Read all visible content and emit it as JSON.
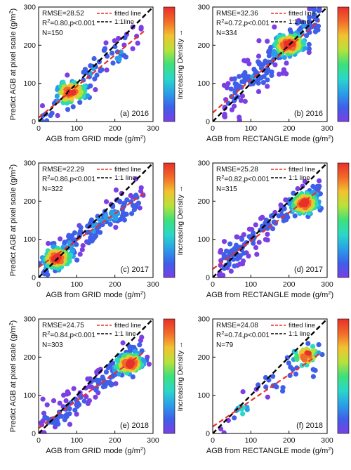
{
  "colors": {
    "fitted_line": "#e8302a",
    "one_to_one_line": "#000000",
    "density_scale": [
      "#7b3fe4",
      "#3f5fe8",
      "#2a9fe8",
      "#2ad8c8",
      "#3ee07a",
      "#b8e23a",
      "#f2c230",
      "#f26a2a",
      "#e8302a"
    ]
  },
  "colorbar": {
    "label": "Increasing Density →"
  },
  "chart_data": [
    {
      "type": "scatter",
      "panel_label": "(a) 2016",
      "xlabel": "AGB  from GRID mode (g/m²)",
      "ylabel": "Predict AGB at pixel scale (g/m²)",
      "xlim": [
        0,
        300
      ],
      "ylim": [
        0,
        300
      ],
      "x_ticks": [
        "0",
        "100",
        "200",
        "300"
      ],
      "y_ticks": [
        "0",
        "100",
        "200",
        "300"
      ],
      "stats": {
        "rmse": "RMSE=28.52",
        "r2": "R²=0.80,p<0.001",
        "n": "N=150"
      },
      "legend": {
        "fitted": "fitted line",
        "one_to_one": "1:1line"
      },
      "fitted_line": {
        "slope": 0.82,
        "intercept": 10
      },
      "scatter_sample": {
        "n": 150,
        "x_min": 8,
        "x_max": 270,
        "slope": 0.82,
        "intercept": 10,
        "noise": 22,
        "dense_center": [
          85,
          75
        ],
        "seed": 11
      }
    },
    {
      "type": "scatter",
      "panel_label": "(b) 2016",
      "xlabel": "AGB  from RECTANGLE mode (g/m²)",
      "ylabel": "",
      "xlim": [
        0,
        300
      ],
      "ylim": [
        0,
        300
      ],
      "x_ticks": [
        "0",
        "100",
        "200",
        "300"
      ],
      "y_ticks": [
        "0",
        "100",
        "200",
        "300"
      ],
      "stats": {
        "rmse": "RMSE=32.36",
        "r2": "R²=0.72,p<0.001",
        "n": "N=334"
      },
      "legend": {
        "fitted": "fitted line",
        "one_to_one": "1:1 line"
      },
      "fitted_line": {
        "slope": 0.86,
        "intercept": 23
      },
      "scatter_sample": {
        "n": 334,
        "x_min": 30,
        "x_max": 280,
        "slope": 0.86,
        "intercept": 23,
        "noise": 30,
        "dense_center": [
          200,
          200
        ],
        "seed": 23
      }
    },
    {
      "type": "scatter",
      "panel_label": "(c) 2017",
      "xlabel": "AGB  from GRID  mode (g/m²)",
      "ylabel": "Predict AGB at pixel scale (g/m²)",
      "xlim": [
        0,
        300
      ],
      "ylim": [
        0,
        300
      ],
      "x_ticks": [
        "0",
        "100",
        "200",
        "300"
      ],
      "y_ticks": [
        "0",
        "100",
        "200",
        "300"
      ],
      "stats": {
        "rmse": "RMSE=22.29",
        "r2": "R²=0.86,p<0.001",
        "n": "N=322"
      },
      "legend": {
        "fitted": "fitted line",
        "one_to_one": "1:1 line"
      },
      "fitted_line": {
        "slope": 0.7,
        "intercept": 27
      },
      "scatter_sample": {
        "n": 322,
        "x_min": 10,
        "x_max": 275,
        "slope": 0.7,
        "intercept": 27,
        "noise": 20,
        "dense_center": [
          50,
          50
        ],
        "seed": 37
      }
    },
    {
      "type": "scatter",
      "panel_label": "(d) 2017",
      "xlabel": "AGB  from RECTANGLE mode (g/m²)",
      "ylabel": "",
      "xlim": [
        0,
        300
      ],
      "ylim": [
        0,
        300
      ],
      "x_ticks": [
        "0",
        "100",
        "200",
        "300"
      ],
      "y_ticks": [
        "0",
        "100",
        "200",
        "300"
      ],
      "stats": {
        "rmse": "RMSE=25.28",
        "r2": "R²=0.82,p<0.001",
        "n": "N=315"
      },
      "legend": {
        "fitted": "fitted line",
        "one_to_one": "1:1 line"
      },
      "fitted_line": {
        "slope": 0.74,
        "intercept": 22
      },
      "scatter_sample": {
        "n": 315,
        "x_min": 15,
        "x_max": 280,
        "slope": 0.74,
        "intercept": 22,
        "noise": 22,
        "dense_center": [
          240,
          195
        ],
        "seed": 53
      }
    },
    {
      "type": "scatter",
      "panel_label": "(e) 2018",
      "xlabel": "AGB  from GRID  mode (g/m²)",
      "ylabel": "Predict AGB at pixel scale (g/m²)",
      "xlim": [
        0,
        300
      ],
      "ylim": [
        0,
        300
      ],
      "x_ticks": [
        "0",
        "100",
        "200",
        "300"
      ],
      "y_ticks": [
        "0",
        "100",
        "200",
        "300"
      ],
      "stats": {
        "rmse": "RMSE=24.75",
        "r2": "R²=0.84,p<0.001",
        "n": "N=303"
      },
      "legend": {
        "fitted": "fitted line",
        "one_to_one": "1:1 line"
      },
      "fitted_line": {
        "slope": 0.72,
        "intercept": 14
      },
      "scatter_sample": {
        "n": 303,
        "x_min": 5,
        "x_max": 280,
        "slope": 0.72,
        "intercept": 14,
        "noise": 22,
        "dense_center": [
          240,
          185
        ],
        "seed": 71
      }
    },
    {
      "type": "scatter",
      "panel_label": "(f) 2018",
      "xlabel": "AGB  from RECTANGLE mode (g/m²)",
      "ylabel": "",
      "xlim": [
        0,
        300
      ],
      "ylim": [
        0,
        300
      ],
      "x_ticks": [
        "0",
        "100",
        "200",
        "300"
      ],
      "y_ticks": [
        "0",
        "100",
        "200",
        "300"
      ],
      "stats": {
        "rmse": "RMSE=24.08",
        "r2": "R²=0.74,p<0.001",
        "n": "N=79"
      },
      "legend": {
        "fitted": "fitted line",
        "one_to_one": "1:1 line"
      },
      "fitted_line": {
        "slope": 0.68,
        "intercept": 18
      },
      "scatter_sample": {
        "n": 79,
        "x_min": 20,
        "x_max": 275,
        "slope": 0.68,
        "intercept": 18,
        "noise": 20,
        "dense_center": [
          245,
          205
        ],
        "seed": 89
      }
    }
  ]
}
